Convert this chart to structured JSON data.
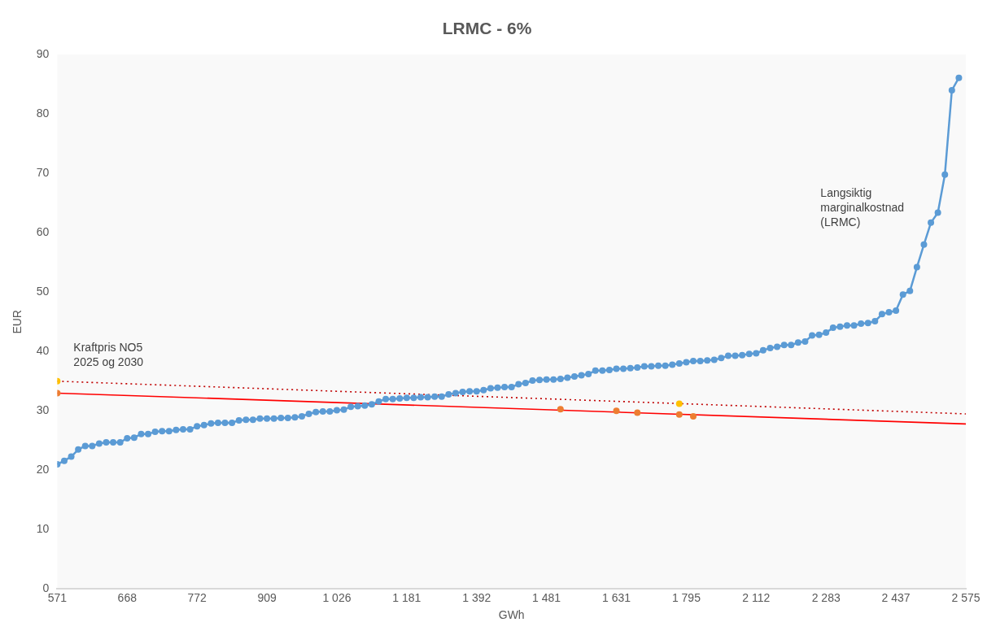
{
  "chart_data": {
    "type": "line",
    "title": "LRMC - 6%",
    "xlabel": "GWh",
    "ylabel": "EUR",
    "categories": [
      "571",
      null,
      null,
      null,
      null,
      null,
      null,
      null,
      null,
      null,
      "668",
      null,
      null,
      null,
      null,
      null,
      null,
      null,
      null,
      null,
      "772",
      null,
      null,
      null,
      null,
      null,
      null,
      null,
      null,
      null,
      "909",
      null,
      null,
      null,
      null,
      null,
      null,
      null,
      null,
      null,
      "1 026",
      null,
      null,
      null,
      null,
      null,
      null,
      null,
      null,
      null,
      "1 181",
      null,
      null,
      null,
      null,
      null,
      null,
      null,
      null,
      null,
      "1 392",
      null,
      null,
      null,
      null,
      null,
      null,
      null,
      null,
      null,
      "1 481",
      null,
      null,
      null,
      null,
      null,
      null,
      null,
      null,
      null,
      "1 631",
      null,
      null,
      null,
      null,
      null,
      null,
      null,
      null,
      null,
      "1 795",
      null,
      null,
      null,
      null,
      null,
      null,
      null,
      null,
      null,
      "2 112",
      null,
      null,
      null,
      null,
      null,
      null,
      null,
      null,
      null,
      "2 283",
      null,
      null,
      null,
      null,
      null,
      null,
      null,
      null,
      null,
      "2 437",
      null,
      null,
      null,
      null,
      null,
      null,
      null,
      null,
      null,
      "2 575"
    ],
    "series": [
      {
        "color": "#5b9bd5",
        "marker": "circle",
        "values": [
          21.0,
          21.6,
          22.3,
          23.5,
          24.1,
          24.1,
          24.5,
          24.7,
          24.7,
          24.7,
          25.4,
          25.5,
          26.1,
          26.1,
          26.5,
          26.6,
          26.6,
          26.8,
          26.9,
          26.9,
          27.4,
          27.6,
          27.9,
          28.0,
          28.0,
          28.0,
          28.4,
          28.5,
          28.5,
          28.7,
          28.7,
          28.7,
          28.8,
          28.8,
          28.9,
          29.1,
          29.5,
          29.8,
          29.9,
          29.9,
          30.1,
          30.2,
          30.7,
          30.8,
          30.9,
          31.1,
          31.6,
          32.0,
          32.0,
          32.1,
          32.2,
          32.2,
          32.3,
          32.3,
          32.4,
          32.4,
          32.8,
          33.0,
          33.2,
          33.3,
          33.3,
          33.5,
          33.8,
          33.9,
          34.0,
          34.0,
          34.5,
          34.7,
          35.1,
          35.2,
          35.3,
          35.3,
          35.4,
          35.6,
          35.8,
          36.0,
          36.2,
          36.8,
          36.8,
          36.9,
          37.1,
          37.1,
          37.2,
          37.3,
          37.5,
          37.5,
          37.6,
          37.6,
          37.8,
          38.0,
          38.2,
          38.4,
          38.4,
          38.5,
          38.6,
          38.9,
          39.3,
          39.3,
          39.4,
          39.6,
          39.7,
          40.2,
          40.6,
          40.8,
          41.1,
          41.1,
          41.5,
          41.7,
          42.7,
          42.8,
          43.2,
          44.0,
          44.2,
          44.4,
          44.4,
          44.7,
          44.8,
          45.1,
          46.3,
          46.6,
          46.9,
          49.6,
          50.2,
          54.2,
          58.0,
          61.7,
          63.4,
          69.8,
          84.0,
          86.1,
          null
        ]
      },
      {
        "type": "line",
        "color": "#ff0000",
        "marker": "none",
        "line_style": "solid",
        "x": [
          "571",
          "2 575"
        ],
        "values": [
          33.0,
          27.8
        ]
      },
      {
        "type": "line",
        "color": "#c00000",
        "marker": "none",
        "line_style": "dotted",
        "x": [
          "571",
          "2 575"
        ],
        "values": [
          35.0,
          29.5
        ]
      },
      {
        "type": "scatter",
        "color": "#ed7d31",
        "marker": "circle",
        "values": [
          33.0,
          null,
          null,
          null,
          null,
          null,
          null,
          null,
          null,
          null,
          null,
          null,
          null,
          null,
          null,
          null,
          null,
          null,
          null,
          null,
          null,
          null,
          null,
          null,
          null,
          null,
          null,
          null,
          null,
          null,
          null,
          null,
          null,
          null,
          null,
          null,
          null,
          null,
          null,
          null,
          null,
          null,
          null,
          null,
          null,
          null,
          null,
          null,
          null,
          null,
          null,
          null,
          null,
          null,
          null,
          null,
          null,
          null,
          null,
          null,
          null,
          null,
          null,
          null,
          null,
          null,
          null,
          null,
          null,
          null,
          null,
          null,
          30.3,
          null,
          null,
          null,
          null,
          null,
          null,
          null,
          30.0,
          null,
          null,
          29.7,
          null,
          null,
          null,
          null,
          null,
          29.4,
          null,
          29.1,
          null,
          null,
          null,
          null,
          null,
          null,
          null,
          null,
          null,
          null,
          null,
          null,
          null,
          null,
          null,
          null,
          null,
          null,
          null,
          null,
          null,
          null,
          null,
          null,
          null,
          null,
          null,
          null,
          null,
          null,
          null,
          null,
          null,
          null,
          null,
          null,
          null,
          null,
          null
        ]
      },
      {
        "type": "scatter",
        "color": "#ffc000",
        "marker": "circle",
        "values": [
          35.0,
          null,
          null,
          null,
          null,
          null,
          null,
          null,
          null,
          null,
          null,
          null,
          null,
          null,
          null,
          null,
          null,
          null,
          null,
          null,
          null,
          null,
          null,
          null,
          null,
          null,
          null,
          null,
          null,
          null,
          null,
          null,
          null,
          null,
          null,
          null,
          null,
          null,
          null,
          null,
          null,
          null,
          null,
          null,
          null,
          null,
          null,
          null,
          null,
          null,
          null,
          null,
          null,
          null,
          null,
          null,
          null,
          null,
          null,
          null,
          null,
          null,
          null,
          null,
          null,
          null,
          null,
          null,
          null,
          null,
          null,
          null,
          null,
          null,
          null,
          null,
          null,
          null,
          null,
          null,
          null,
          null,
          null,
          null,
          null,
          null,
          null,
          null,
          null,
          31.2,
          null,
          null,
          null,
          null,
          null,
          null,
          null,
          null,
          null,
          null,
          null,
          null,
          null,
          null,
          null,
          null,
          null,
          null,
          null,
          null,
          null,
          null,
          null,
          null,
          null,
          null,
          null,
          null,
          null,
          null,
          null,
          null,
          null,
          null,
          null,
          null,
          null,
          null,
          null,
          null,
          null
        ]
      }
    ],
    "ylim": [
      0,
      90
    ],
    "yticks": [
      0,
      10,
      20,
      30,
      40,
      50,
      60,
      70,
      80,
      90
    ],
    "grid": false,
    "legend": false,
    "annotations": [
      "Kraftpris NO5\n2025 og 2030",
      "Langsiktig\nmarginalkostnad\n(LRMC)"
    ]
  }
}
